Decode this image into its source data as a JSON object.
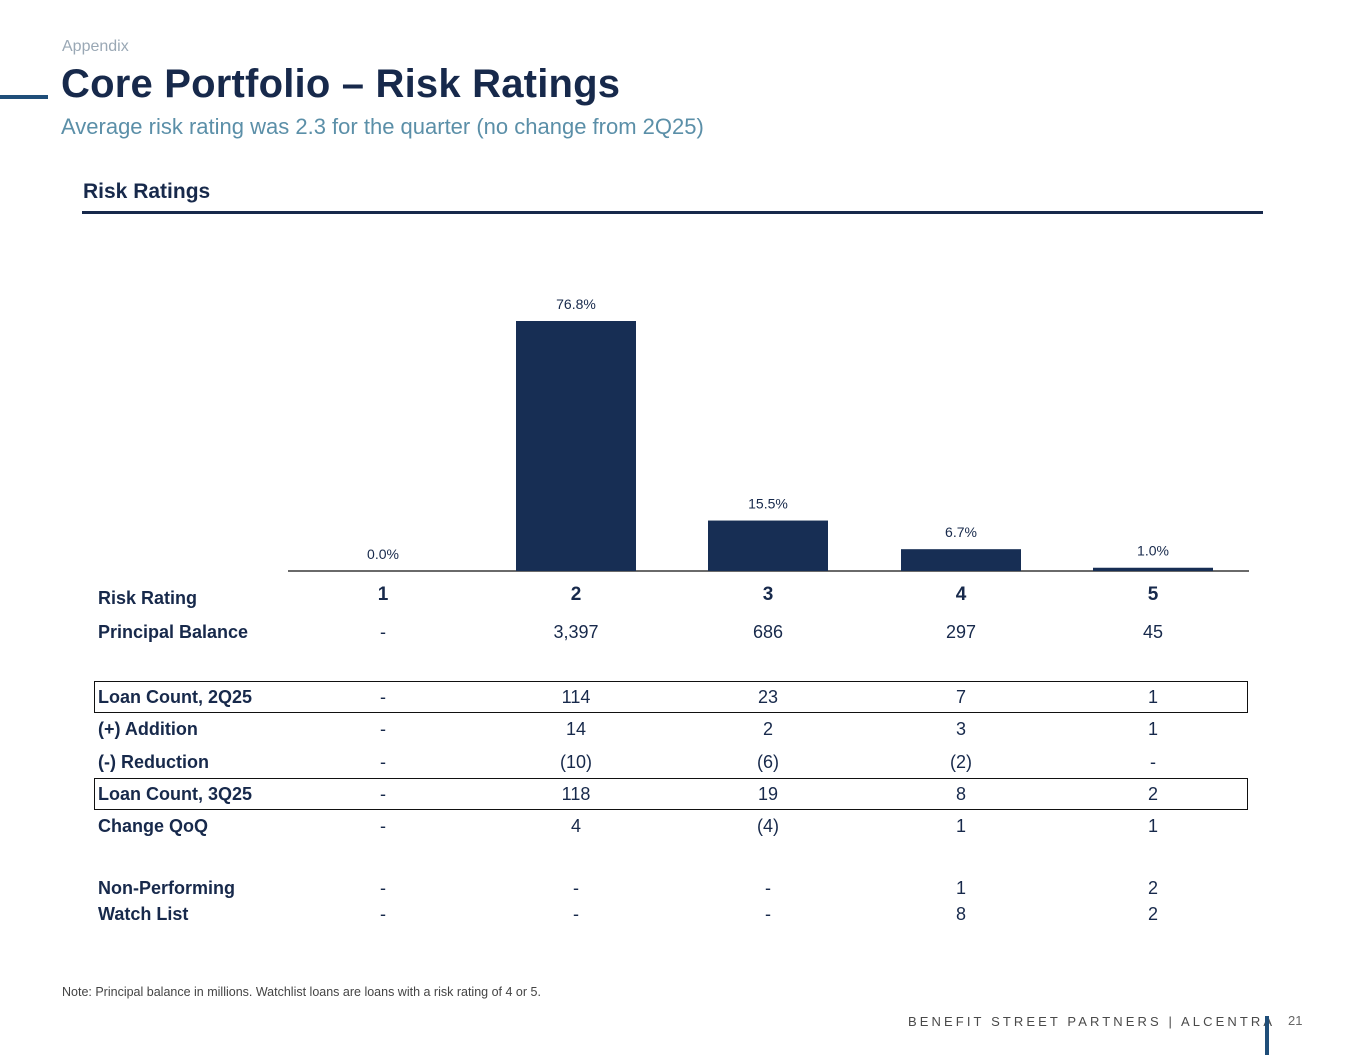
{
  "header": {
    "section": "Appendix",
    "title": "Core Portfolio – Risk Ratings",
    "subtitle": "Average risk rating was 2.3 for the quarter (no change from 2Q25)",
    "chart_heading": "Risk Ratings"
  },
  "chart_data": {
    "type": "bar",
    "title": "Risk Ratings",
    "xlabel": "",
    "ylabel": "",
    "categories": [
      "1",
      "2",
      "3",
      "4",
      "5"
    ],
    "values": [
      0.0,
      76.8,
      15.5,
      6.7,
      1.0
    ],
    "value_labels": [
      "0.0%",
      "76.8%",
      "15.5%",
      "6.7%",
      "1.0%"
    ],
    "ylim": [
      0,
      80
    ],
    "bar_color": "#172e54",
    "grid": false,
    "legend": "none"
  },
  "table": {
    "header_label": "Risk Rating",
    "ratings": [
      "1",
      "2",
      "3",
      "4",
      "5"
    ],
    "rows": [
      {
        "label": "Principal Balance",
        "values": [
          "-",
          "3,397",
          "686",
          "297",
          "45"
        ],
        "boxed": false
      },
      {
        "label": "Loan Count, 2Q25",
        "values": [
          "-",
          "114",
          "23",
          "7",
          "1"
        ],
        "boxed": true
      },
      {
        "label": "(+) Addition",
        "values": [
          "-",
          "14",
          "2",
          "3",
          "1"
        ],
        "boxed": false
      },
      {
        "label": "(-) Reduction",
        "values": [
          "-",
          "(10)",
          "(6)",
          "(2)",
          "-"
        ],
        "boxed": false
      },
      {
        "label": "Loan Count, 3Q25",
        "values": [
          "-",
          "118",
          "19",
          "8",
          "2"
        ],
        "boxed": true
      },
      {
        "label": "Change QoQ",
        "values": [
          "-",
          "4",
          "(4)",
          "1",
          "1"
        ],
        "boxed": false
      },
      {
        "label": "Non-Performing",
        "values": [
          "-",
          "-",
          "-",
          "1",
          "2"
        ],
        "boxed": false
      },
      {
        "label": "Watch List",
        "values": [
          "-",
          "-",
          "-",
          "8",
          "2"
        ],
        "boxed": false
      }
    ]
  },
  "footer": {
    "note": "Note: Principal balance in millions. Watchlist loans are loans with a risk rating of 4 or 5.",
    "brand": "BENEFIT STREET PARTNERS | ALCENTRA",
    "page_number": "21"
  }
}
